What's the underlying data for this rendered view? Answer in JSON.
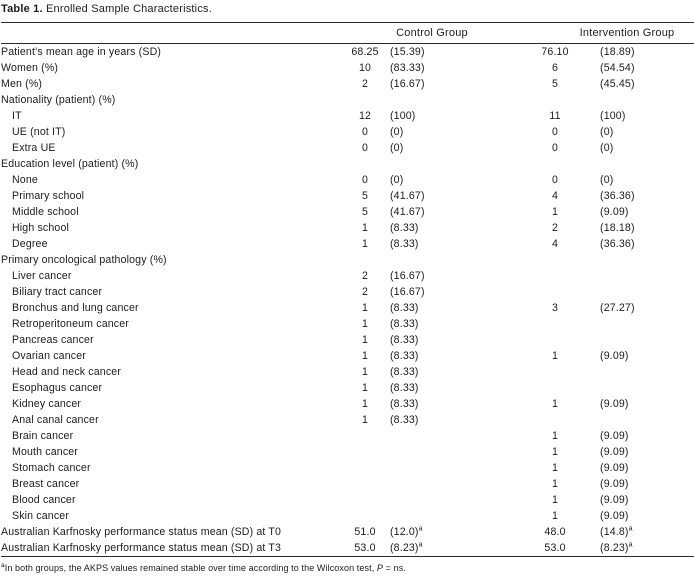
{
  "colors": {
    "text": "#1c1c1c",
    "rule": "#2a2a2a",
    "background": "#ffffff"
  },
  "title": {
    "label": "Table 1.",
    "text": " Enrolled Sample Characteristics."
  },
  "header": {
    "control": "Control Group",
    "intervention": "Intervention Group"
  },
  "table": {
    "rows": [
      {
        "label": "Patient’s mean age in years (SD)",
        "indent": false,
        "cells": [
          "68.25",
          "(15.39)",
          "76.10",
          "(18.89)"
        ]
      },
      {
        "label": "Women (%)",
        "indent": false,
        "cells": [
          "10",
          "(83.33)",
          "6",
          "(54.54)"
        ]
      },
      {
        "label": "Men (%)",
        "indent": false,
        "cells": [
          "2",
          "(16.67)",
          "5",
          "(45.45)"
        ]
      },
      {
        "label": "Nationality (patient) (%)",
        "indent": false,
        "cells": [
          "",
          "",
          "",
          ""
        ]
      },
      {
        "label": "IT",
        "indent": true,
        "cells": [
          "12",
          "(100)",
          "11",
          "(100)"
        ]
      },
      {
        "label": "UE (not IT)",
        "indent": true,
        "cells": [
          "0",
          "(0)",
          "0",
          "(0)"
        ]
      },
      {
        "label": "Extra UE",
        "indent": true,
        "cells": [
          "0",
          "(0)",
          "0",
          "(0)"
        ]
      },
      {
        "label": "Education level (patient) (%)",
        "indent": false,
        "cells": [
          "",
          "",
          "",
          ""
        ]
      },
      {
        "label": "None",
        "indent": true,
        "cells": [
          "0",
          "(0)",
          "0",
          "(0)"
        ]
      },
      {
        "label": "Primary school",
        "indent": true,
        "cells": [
          "5",
          "(41.67)",
          "4",
          "(36.36)"
        ]
      },
      {
        "label": "Middle school",
        "indent": true,
        "cells": [
          "5",
          "(41.67)",
          "1",
          "(9.09)"
        ]
      },
      {
        "label": "High school",
        "indent": true,
        "cells": [
          "1",
          "(8.33)",
          "2",
          "(18.18)"
        ]
      },
      {
        "label": "Degree",
        "indent": true,
        "cells": [
          "1",
          "(8.33)",
          "4",
          "(36.36)"
        ]
      },
      {
        "label": "Primary oncological pathology (%)",
        "indent": false,
        "cells": [
          "",
          "",
          "",
          ""
        ]
      },
      {
        "label": "Liver cancer",
        "indent": true,
        "cells": [
          "2",
          "(16.67)",
          "",
          ""
        ]
      },
      {
        "label": "Biliary tract cancer",
        "indent": true,
        "cells": [
          "2",
          "(16.67)",
          "",
          ""
        ]
      },
      {
        "label": "Bronchus and lung cancer",
        "indent": true,
        "cells": [
          "1",
          "(8.33)",
          "3",
          "(27.27)"
        ]
      },
      {
        "label": "Retroperitoneum cancer",
        "indent": true,
        "cells": [
          "1",
          "(8.33)",
          "",
          ""
        ]
      },
      {
        "label": "Pancreas cancer",
        "indent": true,
        "cells": [
          "1",
          "(8.33)",
          "",
          ""
        ]
      },
      {
        "label": "Ovarian cancer",
        "indent": true,
        "cells": [
          "1",
          "(8.33)",
          "1",
          "(9.09)"
        ]
      },
      {
        "label": "Head and neck cancer",
        "indent": true,
        "cells": [
          "1",
          "(8.33)",
          "",
          ""
        ]
      },
      {
        "label": "Esophagus cancer",
        "indent": true,
        "cells": [
          "1",
          "(8.33)",
          "",
          ""
        ]
      },
      {
        "label": "Kidney cancer",
        "indent": true,
        "cells": [
          "1",
          "(8.33)",
          "1",
          "(9.09)"
        ]
      },
      {
        "label": "Anal canal cancer",
        "indent": true,
        "cells": [
          "1",
          "(8.33)",
          "",
          ""
        ]
      },
      {
        "label": "Brain cancer",
        "indent": true,
        "cells": [
          "",
          "",
          "1",
          "(9.09)"
        ]
      },
      {
        "label": "Mouth cancer",
        "indent": true,
        "cells": [
          "",
          "",
          "1",
          "(9.09)"
        ]
      },
      {
        "label": "Stomach cancer",
        "indent": true,
        "cells": [
          "",
          "",
          "1",
          "(9.09)"
        ]
      },
      {
        "label": "Breast cancer",
        "indent": true,
        "cells": [
          "",
          "",
          "1",
          "(9.09)"
        ]
      },
      {
        "label": "Blood cancer",
        "indent": true,
        "cells": [
          "",
          "",
          "1",
          "(9.09)"
        ]
      },
      {
        "label": "Skin cancer",
        "indent": true,
        "cells": [
          "",
          "",
          "1",
          "(9.09)"
        ]
      },
      {
        "label": "Australian Karfnosky performance status mean (SD) at T0",
        "indent": false,
        "cells": [
          "51.0",
          "(12.0)",
          "48.0",
          "(14.8)"
        ],
        "sups": [
          "",
          "a",
          "",
          "a"
        ]
      },
      {
        "label": "Australian Karfnosky performance status mean (SD) at T3",
        "indent": false,
        "cells": [
          "53.0",
          "(8.23)",
          "53.0",
          "(8.23)"
        ],
        "sups": [
          "",
          "a",
          "",
          "a"
        ]
      }
    ]
  },
  "footnote": {
    "marker": "a",
    "text1": "In both groups, the AKPS values remained stable over time according to the Wilcoxon test, ",
    "stat": "P",
    "text2": " = ns."
  }
}
